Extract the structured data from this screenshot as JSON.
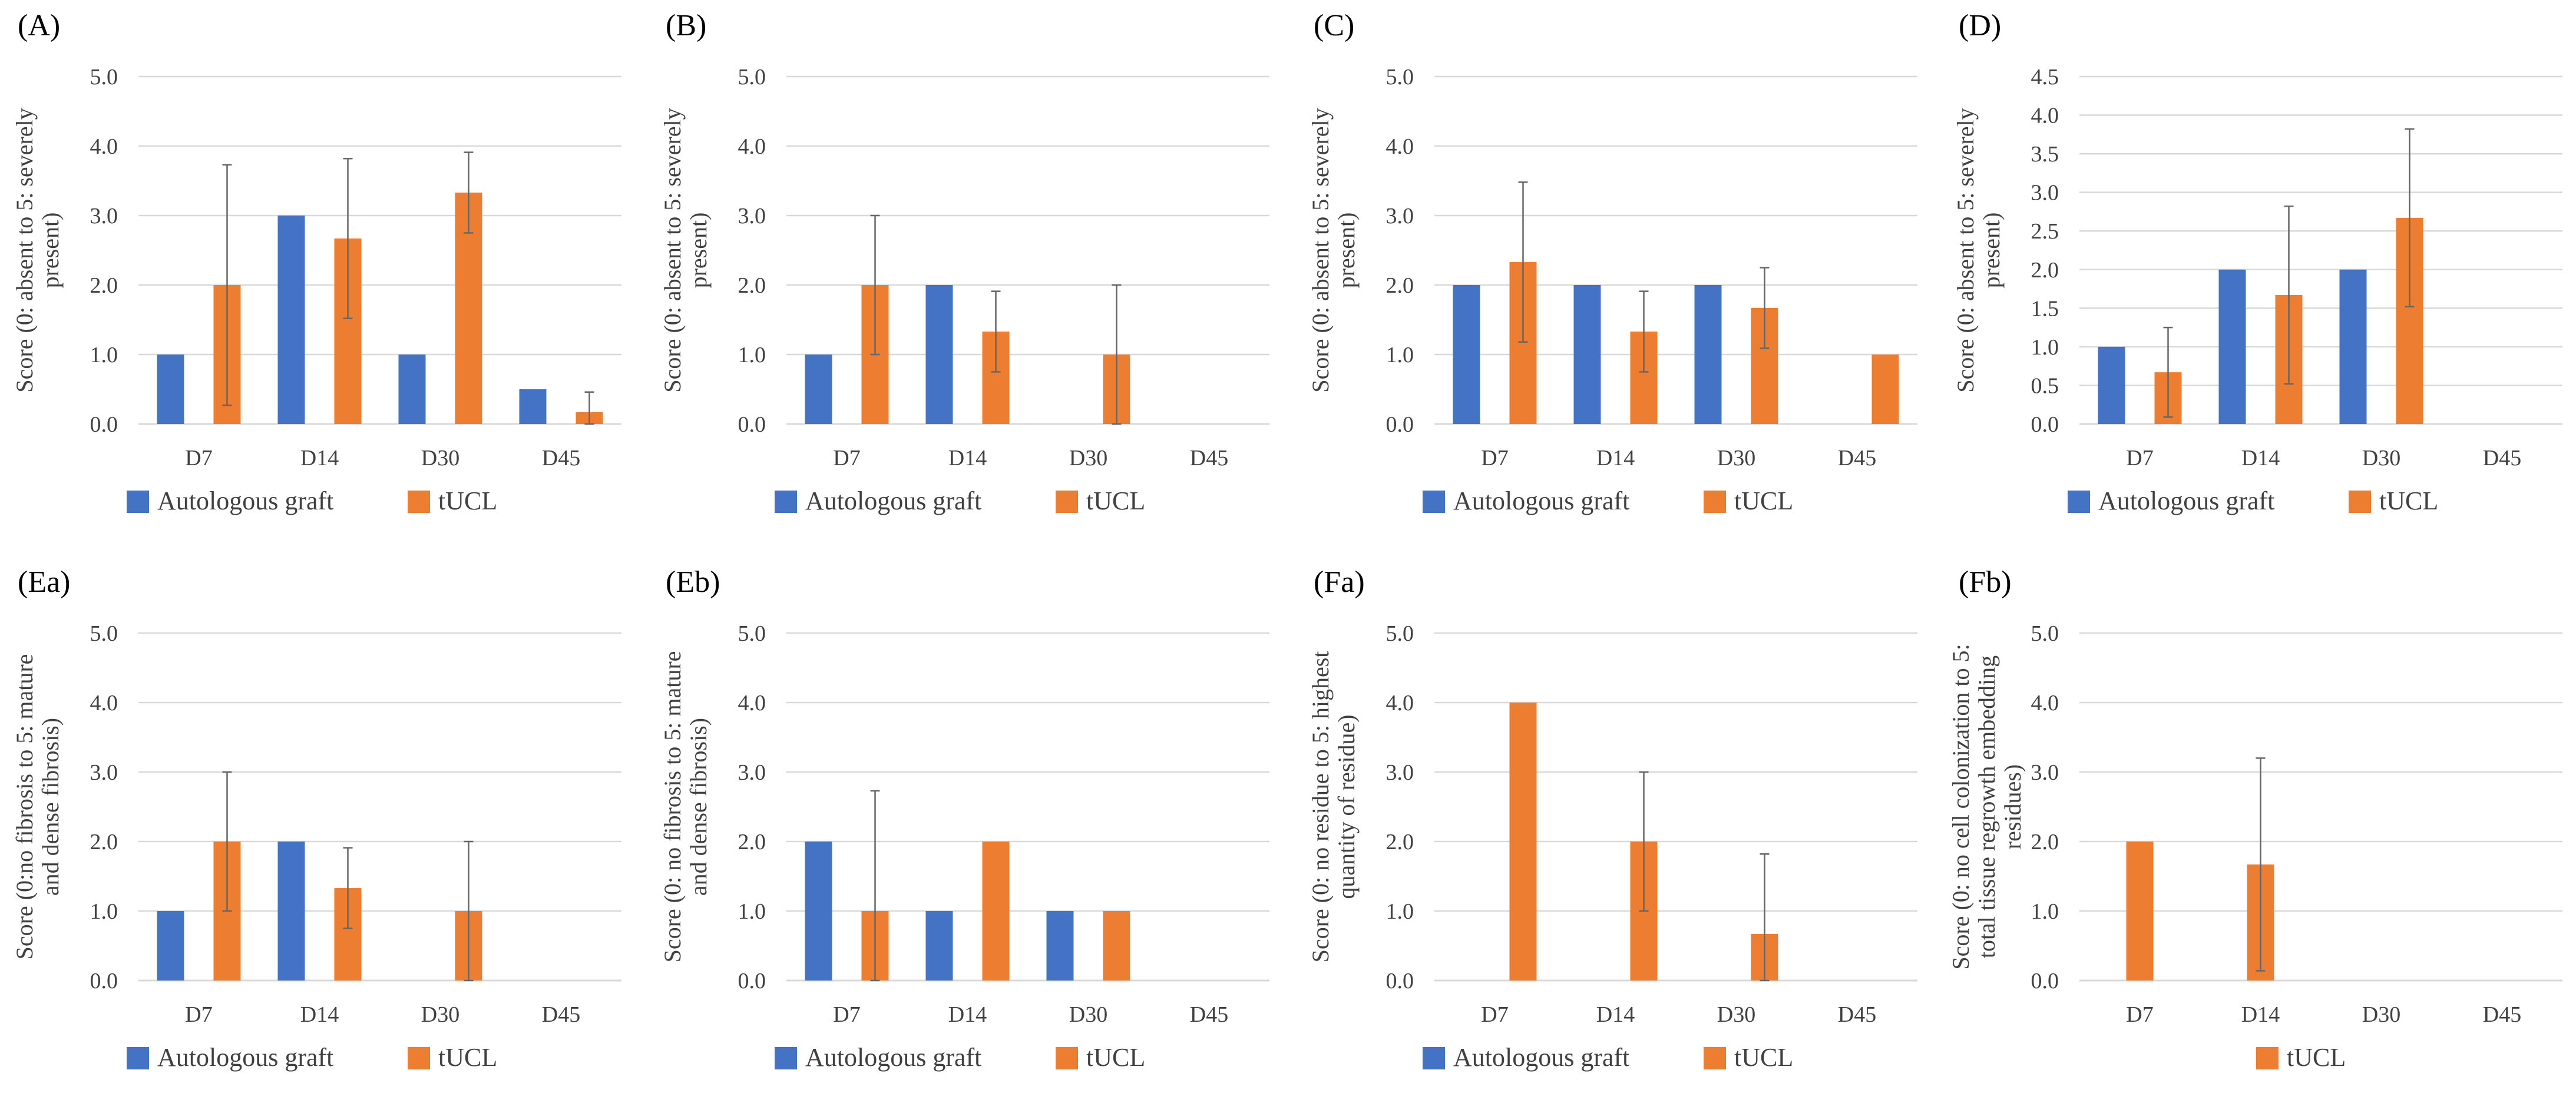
{
  "chart_data": [
    {
      "type": "bar",
      "panel_label": "(A)",
      "title": "",
      "ylabel": [
        "Score (0: absent to 5: severely",
        "present)"
      ],
      "categories": [
        "D7",
        "D14",
        "D30",
        "D45"
      ],
      "ylim": [
        0,
        5
      ],
      "yticks": [
        "0.0",
        "1.0",
        "2.0",
        "3.0",
        "4.0",
        "5.0"
      ],
      "series": [
        {
          "name": "Autologous graft",
          "color": "#4472c4",
          "values": [
            1.0,
            3.0,
            1.0,
            0.5
          ],
          "errors": [
            null,
            null,
            null,
            null
          ]
        },
        {
          "name": "tUCL",
          "color": "#ed7d31",
          "values": [
            2.0,
            2.67,
            3.33,
            0.17
          ],
          "errors": [
            1.73,
            1.15,
            0.58,
            0.29
          ]
        }
      ],
      "legend": "bottom-left"
    },
    {
      "type": "bar",
      "panel_label": "(B)",
      "title": "",
      "ylabel": [
        "Score (0: absent to 5: severely",
        "present)"
      ],
      "categories": [
        "D7",
        "D14",
        "D30",
        "D45"
      ],
      "ylim": [
        0,
        5
      ],
      "yticks": [
        "0.0",
        "1.0",
        "2.0",
        "3.0",
        "4.0",
        "5.0"
      ],
      "series": [
        {
          "name": "Autologous graft",
          "color": "#4472c4",
          "values": [
            1.0,
            2.0,
            null,
            null
          ],
          "errors": [
            null,
            null,
            null,
            null
          ]
        },
        {
          "name": "tUCL",
          "color": "#ed7d31",
          "values": [
            2.0,
            1.33,
            1.0,
            null
          ],
          "errors": [
            1.0,
            0.58,
            1.0,
            null
          ]
        }
      ],
      "legend": "bottom-left"
    },
    {
      "type": "bar",
      "panel_label": "(C)",
      "title": "",
      "ylabel": [
        "Score (0: absent to 5: severely",
        "present)"
      ],
      "categories": [
        "D7",
        "D14",
        "D30",
        "D45"
      ],
      "ylim": [
        0,
        5
      ],
      "yticks": [
        "0.0",
        "1.0",
        "2.0",
        "3.0",
        "4.0",
        "5.0"
      ],
      "series": [
        {
          "name": "Autologous graft",
          "color": "#4472c4",
          "values": [
            2.0,
            2.0,
            2.0,
            null
          ],
          "errors": [
            null,
            null,
            null,
            null
          ]
        },
        {
          "name": "tUCL",
          "color": "#ed7d31",
          "values": [
            2.33,
            1.33,
            1.67,
            1.0
          ],
          "errors": [
            1.15,
            0.58,
            0.58,
            null
          ]
        }
      ],
      "legend": "bottom-left"
    },
    {
      "type": "bar",
      "panel_label": "(D)",
      "title": "",
      "ylabel": [
        "Score (0: absent to 5: severely",
        "present)"
      ],
      "categories": [
        "D7",
        "D14",
        "D30",
        "D45"
      ],
      "ylim": [
        0,
        4.5
      ],
      "yticks": [
        "0.0",
        "0.5",
        "1.0",
        "1.5",
        "2.0",
        "2.5",
        "3.0",
        "3.5",
        "4.0",
        "4.5"
      ],
      "series": [
        {
          "name": "Autologous graft",
          "color": "#4472c4",
          "values": [
            1.0,
            2.0,
            2.0,
            null
          ],
          "errors": [
            null,
            null,
            null,
            null
          ]
        },
        {
          "name": "tUCL",
          "color": "#ed7d31",
          "values": [
            0.67,
            1.67,
            2.67,
            null
          ],
          "errors": [
            0.58,
            1.15,
            1.15,
            null
          ]
        }
      ],
      "legend": "bottom-left"
    },
    {
      "type": "bar",
      "panel_label": "(Ea)",
      "title": "",
      "ylabel": [
        "Score (0:no fibrosis to 5: mature",
        "and dense fibrosis)"
      ],
      "categories": [
        "D7",
        "D14",
        "D30",
        "D45"
      ],
      "ylim": [
        0,
        5
      ],
      "yticks": [
        "0.0",
        "1.0",
        "2.0",
        "3.0",
        "4.0",
        "5.0"
      ],
      "series": [
        {
          "name": "Autologous graft",
          "color": "#4472c4",
          "values": [
            1.0,
            2.0,
            null,
            null
          ],
          "errors": [
            null,
            null,
            null,
            null
          ]
        },
        {
          "name": "tUCL",
          "color": "#ed7d31",
          "values": [
            2.0,
            1.33,
            1.0,
            null
          ],
          "errors": [
            1.0,
            0.58,
            1.0,
            null
          ]
        }
      ],
      "legend": "bottom-left"
    },
    {
      "type": "bar",
      "panel_label": "(Eb)",
      "title": "",
      "ylabel": [
        "Score (0: no fibrosis to 5: mature",
        "and dense fibrosis)"
      ],
      "categories": [
        "D7",
        "D14",
        "D30",
        "D45"
      ],
      "ylim": [
        0,
        5
      ],
      "yticks": [
        "0.0",
        "1.0",
        "2.0",
        "3.0",
        "4.0",
        "5.0"
      ],
      "series": [
        {
          "name": "Autologous graft",
          "color": "#4472c4",
          "values": [
            2.0,
            1.0,
            1.0,
            null
          ],
          "errors": [
            null,
            null,
            null,
            null
          ]
        },
        {
          "name": "tUCL",
          "color": "#ed7d31",
          "values": [
            1.0,
            2.0,
            1.0,
            null
          ],
          "errors": [
            1.73,
            null,
            null,
            null
          ]
        }
      ],
      "legend": "bottom-left"
    },
    {
      "type": "bar",
      "panel_label": "(Fa)",
      "title": "",
      "ylabel": [
        "Score (0: no residue to 5: highest",
        "quantity of residue)"
      ],
      "categories": [
        "D7",
        "D14",
        "D30",
        "D45"
      ],
      "ylim": [
        0,
        5
      ],
      "yticks": [
        "0.0",
        "1.0",
        "2.0",
        "3.0",
        "4.0",
        "5.0"
      ],
      "series": [
        {
          "name": "Autologous graft",
          "color": "#4472c4",
          "values": [
            null,
            null,
            null,
            null
          ],
          "errors": [
            null,
            null,
            null,
            null
          ]
        },
        {
          "name": "tUCL",
          "color": "#ed7d31",
          "values": [
            4.0,
            2.0,
            0.67,
            null
          ],
          "errors": [
            null,
            1.0,
            1.15,
            null
          ]
        }
      ],
      "legend": "bottom-left"
    },
    {
      "type": "bar",
      "panel_label": "(Fb)",
      "title": "",
      "ylabel": [
        "Score (0: no cell colonization to 5:",
        "total tissue regrowth embedding",
        "residues)"
      ],
      "categories": [
        "D7",
        "D14",
        "D30",
        "D45"
      ],
      "ylim": [
        0,
        5
      ],
      "yticks": [
        "0.0",
        "1.0",
        "2.0",
        "3.0",
        "4.0",
        "5.0"
      ],
      "series": [
        {
          "name": "tUCL",
          "color": "#ed7d31",
          "values": [
            2.0,
            1.67,
            null,
            null
          ],
          "errors": [
            null,
            1.53,
            null,
            null
          ]
        }
      ],
      "legend": "bottom-left"
    }
  ]
}
